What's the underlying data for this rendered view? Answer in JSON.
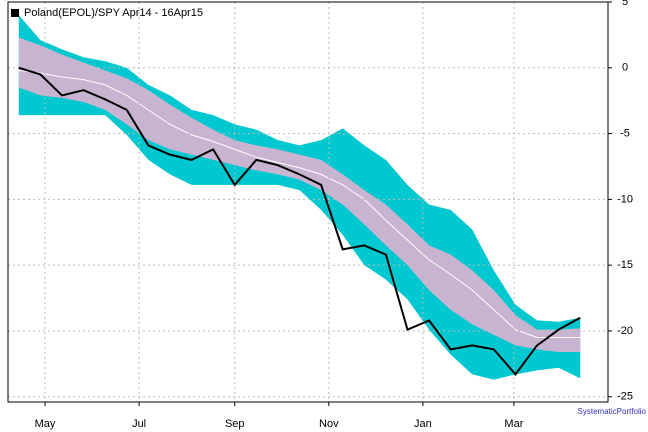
{
  "chart_data": {
    "type": "band",
    "x": [
      0,
      14,
      28,
      42,
      56,
      70,
      84,
      98,
      112,
      126,
      140,
      154,
      168,
      182,
      196,
      210,
      224,
      238,
      252,
      266,
      280,
      294,
      308,
      322,
      336,
      350,
      364
    ],
    "series": [
      {
        "color": "#00c8d0",
        "values": [
          4.0,
          2.1,
          1.4,
          0.8,
          0.5,
          0,
          -1.3,
          -2.1,
          -3.2,
          -3.6,
          -4.3,
          -4.7,
          -5.5,
          -5.9,
          -5.5,
          -4.6,
          -5.9,
          -7.0,
          -8.9,
          -10.4,
          -10.8,
          -12.3,
          -15.4,
          -18.0,
          -19.2,
          -19.3,
          -19.0
        ]
      },
      {
        "color": "#c8b4d0",
        "values": [
          2.3,
          1.7,
          1.0,
          0.4,
          -0.2,
          -0.8,
          -1.7,
          -2.8,
          -3.8,
          -4.7,
          -5.5,
          -5.9,
          -6.2,
          -6.6,
          -7.0,
          -8.1,
          -9.3,
          -10.4,
          -11.9,
          -13.5,
          -14.2,
          -15.4,
          -16.9,
          -18.8,
          -19.9,
          -19.9,
          -19.8
        ]
      },
      {
        "color": "#ffffff",
        "values": [
          -0.2,
          -0.4,
          -0.7,
          -0.9,
          -1.3,
          -2.1,
          -3.2,
          -4.3,
          -5.1,
          -5.6,
          -6.2,
          -6.8,
          -7.2,
          -7.6,
          -8.1,
          -8.9,
          -10.0,
          -11.6,
          -13.1,
          -14.6,
          -15.7,
          -16.9,
          -18.4,
          -19.9,
          -20.5,
          -20.5,
          -20.5
        ]
      },
      {
        "color": "#c8b4d0",
        "values": [
          -1.5,
          -2.1,
          -2.3,
          -2.6,
          -3.2,
          -4.3,
          -5.5,
          -6.2,
          -6.6,
          -7.0,
          -7.4,
          -7.8,
          -8.1,
          -8.5,
          -9.3,
          -10.4,
          -11.9,
          -13.5,
          -15.0,
          -16.9,
          -18.4,
          -19.5,
          -20.3,
          -21.1,
          -21.4,
          -21.6,
          -21.6
        ]
      },
      {
        "color": "#00c8d0",
        "values": [
          -3.6,
          -3.6,
          -3.6,
          -3.6,
          -3.6,
          -5.1,
          -7.0,
          -8.1,
          -8.9,
          -8.9,
          -8.9,
          -8.9,
          -8.9,
          -9.3,
          -10.8,
          -12.7,
          -15.0,
          -16.1,
          -17.6,
          -19.9,
          -21.8,
          -23.3,
          -23.7,
          -23.3,
          -23.0,
          -22.8,
          -23.6
        ]
      },
      {
        "name": "Poland(EPOL)/SPY Apr14 - 16Apr15",
        "color": "#000000",
        "values": [
          0,
          -0.5,
          -2.1,
          -1.7,
          -2.4,
          -3.2,
          -5.9,
          -6.6,
          -7.0,
          -6.2,
          -8.9,
          -7.0,
          -7.4,
          -8.1,
          -8.9,
          -13.8,
          -13.5,
          -14.2,
          -19.9,
          -19.2,
          -21.4,
          -21.1,
          -21.4,
          -23.3,
          -21.1,
          -19.9,
          -19.0
        ]
      }
    ],
    "xlim": [
      -7,
      382
    ],
    "xticks": [
      {
        "value": 17,
        "label": "May"
      },
      {
        "value": 78,
        "label": "Jul"
      },
      {
        "value": 140,
        "label": "Sep"
      },
      {
        "value": 201,
        "label": "Nov"
      },
      {
        "value": 262,
        "label": "Jan"
      },
      {
        "value": 321,
        "label": "Mar"
      }
    ],
    "ylim": [
      -25.4,
      5
    ],
    "yticks": [
      5,
      0,
      -5,
      -10,
      -15,
      -20,
      -25
    ],
    "grid": true,
    "watermark": "SystematicPortfolio"
  }
}
